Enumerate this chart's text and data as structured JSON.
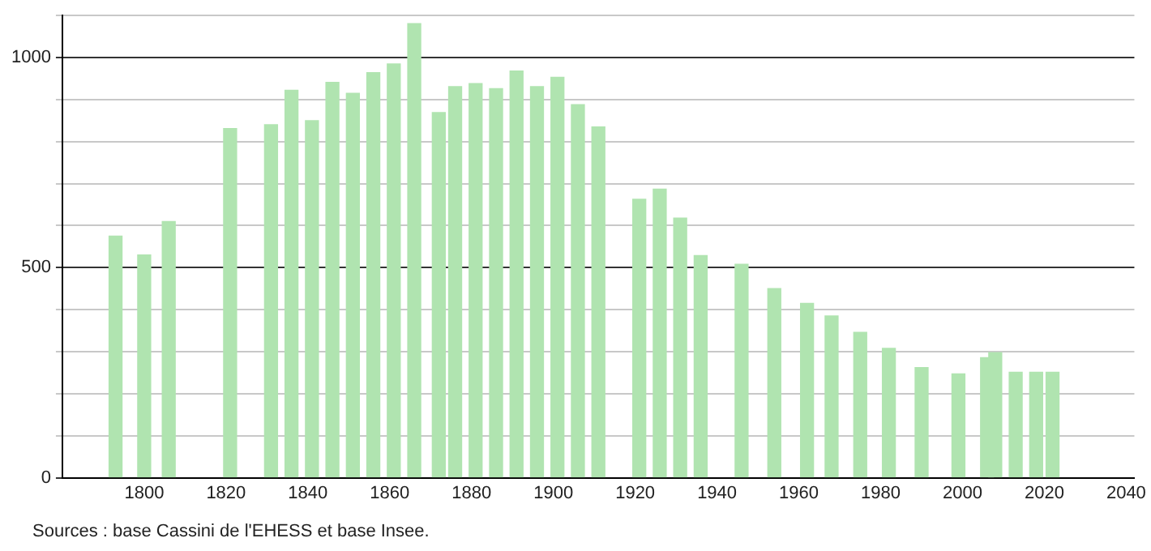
{
  "chart_data": {
    "type": "bar",
    "x": [
      1793,
      1800,
      1806,
      1821,
      1831,
      1836,
      1841,
      1846,
      1851,
      1856,
      1861,
      1866,
      1872,
      1876,
      1881,
      1886,
      1891,
      1896,
      1901,
      1906,
      1911,
      1921,
      1926,
      1931,
      1936,
      1946,
      1954,
      1962,
      1968,
      1975,
      1982,
      1990,
      1999,
      2006,
      2008,
      2013,
      2018,
      2022
    ],
    "values": [
      575,
      530,
      610,
      831,
      840,
      922,
      850,
      941,
      915,
      964,
      985,
      1081,
      869,
      931,
      938,
      926,
      968,
      931,
      953,
      888,
      835,
      663,
      687,
      618,
      529,
      508,
      450,
      415,
      385,
      346,
      308,
      262,
      247,
      286,
      298,
      251,
      251,
      251
    ],
    "color": "#b0e4b0",
    "xlim": [
      1780,
      2042
    ],
    "xticks": [
      1800,
      1820,
      1840,
      1860,
      1880,
      1900,
      1920,
      1940,
      1960,
      1980,
      2000,
      2020,
      2040
    ],
    "ylim": [
      0,
      1100
    ],
    "yticks": [
      0,
      {
        "value": 100,
        "label": null
      },
      {
        "value": 200,
        "label": null
      },
      {
        "value": 300,
        "label": null
      },
      {
        "value": 400,
        "label": null
      },
      500,
      {
        "value": 600,
        "label": null
      },
      {
        "value": 700,
        "label": null
      },
      {
        "value": 800,
        "label": null
      },
      {
        "value": 900,
        "label": null
      },
      1000,
      {
        "value": 1100,
        "label": null
      }
    ],
    "grid": "y",
    "legend": false,
    "annotations": [
      "Sources : base Cassini de l'EHESS et base Insee."
    ]
  }
}
